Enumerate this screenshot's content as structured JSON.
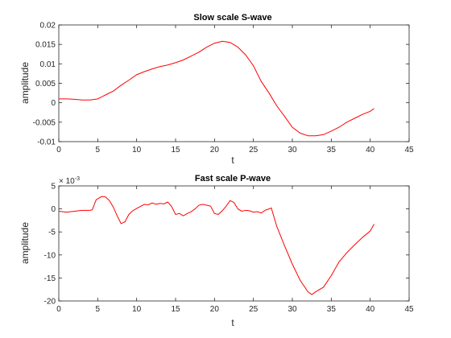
{
  "chart_data": [
    {
      "type": "line",
      "title": "Slow scale S-wave",
      "xlabel": "t",
      "ylabel": "amplitude",
      "xlim": [
        0,
        45
      ],
      "ylim": [
        -0.01,
        0.02
      ],
      "xticks": [
        "0",
        "5",
        "10",
        "15",
        "20",
        "25",
        "30",
        "35",
        "40",
        "45"
      ],
      "yticks": [
        "-0.01",
        "-0.005",
        "0",
        "0.005",
        "0.01",
        "0.015",
        "0.02"
      ],
      "grid": false,
      "series": [
        {
          "color": "#ff0000",
          "x": [
            0,
            1,
            2,
            3,
            4,
            5,
            6,
            7,
            8,
            9,
            10,
            11,
            12,
            13,
            14,
            15,
            16,
            17,
            18,
            19,
            20,
            21,
            22,
            23,
            24,
            25,
            26,
            27,
            28,
            29,
            30,
            31,
            32,
            33,
            34,
            35,
            36,
            37,
            38,
            39,
            40,
            40.5
          ],
          "y": [
            0.001,
            0.001,
            0.0009,
            0.0007,
            0.0007,
            0.001,
            0.002,
            0.003,
            0.0045,
            0.0058,
            0.0072,
            0.008,
            0.0087,
            0.0093,
            0.0097,
            0.0103,
            0.011,
            0.012,
            0.013,
            0.0143,
            0.0153,
            0.0158,
            0.0155,
            0.0143,
            0.0123,
            0.0095,
            0.0055,
            0.0025,
            -0.0008,
            -0.0035,
            -0.0063,
            -0.0078,
            -0.0085,
            -0.0085,
            -0.0082,
            -0.0073,
            -0.0063,
            -0.005,
            -0.004,
            -0.003,
            -0.0022,
            -0.0015
          ]
        }
      ]
    },
    {
      "type": "line",
      "title": "Fast scale P-wave",
      "xlabel": "t",
      "ylabel": "amplitude",
      "multiplier": "× 10",
      "multiplier_exp": "-3",
      "xlim": [
        0,
        45
      ],
      "ylim": [
        -20,
        5
      ],
      "xticks": [
        "0",
        "5",
        "10",
        "15",
        "20",
        "25",
        "30",
        "35",
        "40",
        "45"
      ],
      "yticks": [
        "-20",
        "-15",
        "-10",
        "-5",
        "0",
        "5"
      ],
      "grid": false,
      "series": [
        {
          "color": "#ff0000",
          "x": [
            0,
            1,
            2,
            3,
            4,
            4.3,
            4.8,
            5.5,
            6,
            6.5,
            7,
            7.5,
            8,
            8.5,
            9,
            9.5,
            10,
            11,
            11.5,
            12,
            12.5,
            13,
            13.5,
            14,
            14.5,
            15,
            15.5,
            16,
            16.5,
            17,
            17.5,
            18,
            18.5,
            19,
            19.5,
            20,
            20.5,
            21,
            21.5,
            22,
            22.5,
            23,
            23.5,
            24,
            24.5,
            25,
            25.5,
            26,
            26.5,
            27,
            27.3,
            28,
            29,
            30,
            31,
            32,
            32.5,
            33,
            34,
            35,
            36,
            37,
            38,
            39,
            40,
            40.5
          ],
          "y": [
            -0.5,
            -0.7,
            -0.5,
            -0.3,
            -0.3,
            -0.2,
            2.0,
            2.7,
            2.6,
            1.8,
            0.4,
            -1.5,
            -3.2,
            -2.8,
            -1.2,
            -0.4,
            0.1,
            1.0,
            0.9,
            1.3,
            1.0,
            1.2,
            1.1,
            1.5,
            0.5,
            -1.2,
            -1.0,
            -1.5,
            -1.0,
            -0.6,
            0.0,
            0.8,
            1.0,
            0.8,
            0.6,
            -1.0,
            -1.2,
            -0.4,
            0.6,
            1.8,
            1.4,
            0.0,
            -0.5,
            -0.3,
            -0.4,
            -0.7,
            -0.6,
            -0.9,
            -0.3,
            0.0,
            0.2,
            -3.8,
            -8.0,
            -12.0,
            -15.5,
            -18.0,
            -18.6,
            -18.0,
            -17.0,
            -14.5,
            -11.5,
            -9.5,
            -7.8,
            -6.2,
            -4.8,
            -3.3
          ]
        }
      ]
    }
  ]
}
